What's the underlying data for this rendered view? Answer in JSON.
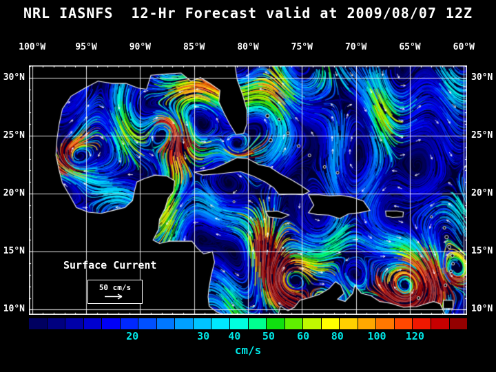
{
  "title": "NRL IASNFS  12-Hr Forecast valid at 2009/08/07 12Z",
  "axes": {
    "lon_ticks": [
      {
        "label": "100°W",
        "lon": -100
      },
      {
        "label": "95°W",
        "lon": -95
      },
      {
        "label": "90°W",
        "lon": -90
      },
      {
        "label": "85°W",
        "lon": -85
      },
      {
        "label": "80°W",
        "lon": -80
      },
      {
        "label": "75°W",
        "lon": -75
      },
      {
        "label": "70°W",
        "lon": -70
      },
      {
        "label": "65°W",
        "lon": -65
      },
      {
        "label": "60°W",
        "lon": -60
      }
    ],
    "lat_ticks": [
      {
        "label": "30°N",
        "lat": 30
      },
      {
        "label": "25°N",
        "lat": 25
      },
      {
        "label": "20°N",
        "lat": 20
      },
      {
        "label": "15°N",
        "lat": 15
      },
      {
        "label": "10°N",
        "lat": 10
      }
    ]
  },
  "map_overlay": {
    "legend_title": "Surface Current",
    "scale_label": "50 cm/s"
  },
  "colorbar": {
    "unit": "cm/s",
    "label_color": "#00e8e8",
    "colors": [
      "#000060",
      "#000080",
      "#0000a8",
      "#0000d0",
      "#0000f8",
      "#0028ff",
      "#0050ff",
      "#0078ff",
      "#00a0ff",
      "#00c4ff",
      "#00e8ff",
      "#00ffe0",
      "#00ff90",
      "#10e010",
      "#60f000",
      "#c0f800",
      "#ffff00",
      "#ffd000",
      "#ffa800",
      "#ff7800",
      "#ff4800",
      "#f01800",
      "#c80000",
      "#940000"
    ],
    "ticks": [
      {
        "label": "20",
        "pct": 23.6
      },
      {
        "label": "30",
        "pct": 39.8
      },
      {
        "label": "40",
        "pct": 46.9
      },
      {
        "label": "50",
        "pct": 54.7
      },
      {
        "label": "60",
        "pct": 62.6
      },
      {
        "label": "80",
        "pct": 70.4
      },
      {
        "label": "100",
        "pct": 79.4
      },
      {
        "label": "120",
        "pct": 88.1
      }
    ]
  }
}
